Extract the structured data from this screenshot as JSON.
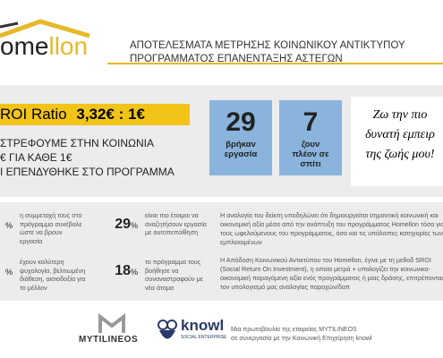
{
  "logo": {
    "part1": "ome",
    "part2": "llon"
  },
  "header": {
    "line1": "ΑΠΟΤΕΛΕΣΜΑΤΑ ΜΕΤΡΗΣΗΣ ΚΟΙΝΩΝΙΚΟΥ ΑΝΤΙΚΤΥΠΟΥ",
    "line2": "ΠΡΟΓΡΑΜΜΑΤΟΣ ΕΠΑΝΕΝΤΑΞΗΣ ΑΣΤΕΓΩΝ"
  },
  "roi": {
    "label": "ROI Ratio",
    "value": "3,32€ : 1€",
    "lines": [
      "ΣΤΡΕΦΟΥΜΕ ΣΤΗΝ ΚΟΙΝΩΝΙΑ",
      "€ ΓΙΑ ΚΑΘΕ 1€",
      "Ι ΕΠΕΝΔΥΘΗΚΕ ΣΤΟ ΠΡΟΓΡΑΜΜΑ"
    ]
  },
  "boxes": [
    {
      "number": "29",
      "text": "βρήκαν εργασία"
    },
    {
      "number": "7",
      "text": "ζουν πλέον σε σπίτι"
    }
  ],
  "quote": [
    "Ζω την πιο",
    "δυνατή εμπειρ",
    "της ζωής μου!"
  ],
  "stats": [
    {
      "number": "",
      "unit": "%",
      "text": "η συμμετοχή τους στο πρόγραμμα συνέβαλε ώστε να βρουν εργασία"
    },
    {
      "number": "29",
      "unit": "%",
      "text": "είναι πιο έτοιμοι να αναζητήσουν εργασία με αυτοπεποίθηση"
    },
    {
      "number": "",
      "unit": "%",
      "text": "έχουν καλύτερη ψυχολογία, βελτιωμένη διάθεση, αισιοδοξία για το μέλλον"
    },
    {
      "number": "18",
      "unit": "%",
      "text": "το πρόγραμμα τους βοήθησε να συναναστραφούν με νέα άτομα"
    }
  ],
  "paragraphs": [
    "Η αναλογία του δείκτη υποδηλώνει ότι δημιουργείται σημαντική κοινωνική και οικονομική αξία μέσα από την ανάπτυξη του προγράμματος Homellon τόσο για τους ωφελούμενους του προγράμματος, όσο και τις υπόλοιπες κατηγορίες των εμπλεκομένων",
    "Η Απόδοση Κοινωνικού Αντικτύπου του Homellon, έγινε με τη μεθοδ SROI (Social Return On Investment), η οποία μετρά + υπολογίζει την κοινωνικο-οικονομική παραγόμενη αξία ενός προγράμματος ή μιας δράσης, επιτρέποντας τον υπολογισμό μας αναλογίας παροχών/δαπ"
  ],
  "footer": {
    "mytilineos": "MYTILINEOS",
    "knowl": "knowl",
    "knowl_sub": "SOCIAL ENTERPRISE",
    "note": [
      "Μια πρωτοβουλία της εταιρείας MYTILINEOS",
      "σε συνεργασία με την Κοινωνική Επιχείρηση knowl"
    ]
  }
}
